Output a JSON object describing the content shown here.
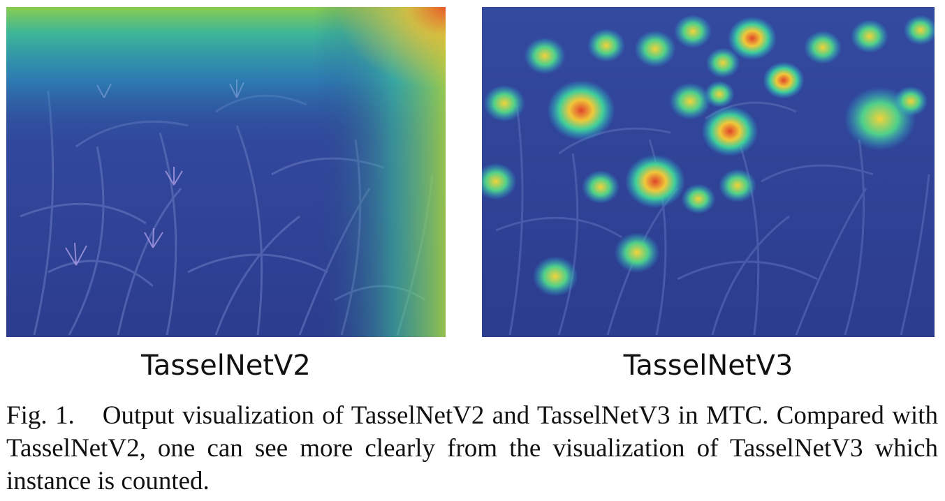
{
  "figure": {
    "panels": [
      {
        "id": "left",
        "label": "TasselNetV2",
        "visualization": "diffuse-heatmap-top-and-right"
      },
      {
        "id": "right",
        "label": "TasselNetV3",
        "visualization": "localized-instance-hotspots"
      }
    ],
    "caption": {
      "figure_number": "Fig. 1.",
      "text": "Output visualization of TasselNetV2 and TasselNetV3 in MTC. Compared with TasselNetV2, one can see more clearly from the visualization of TasselNetV3 which instance is counted."
    },
    "colors": {
      "heat_low": "#2a3a8a",
      "heat_mid": "#24c2b0",
      "heat_high": "#d9432b",
      "foliage": "#4d5fa6"
    }
  }
}
